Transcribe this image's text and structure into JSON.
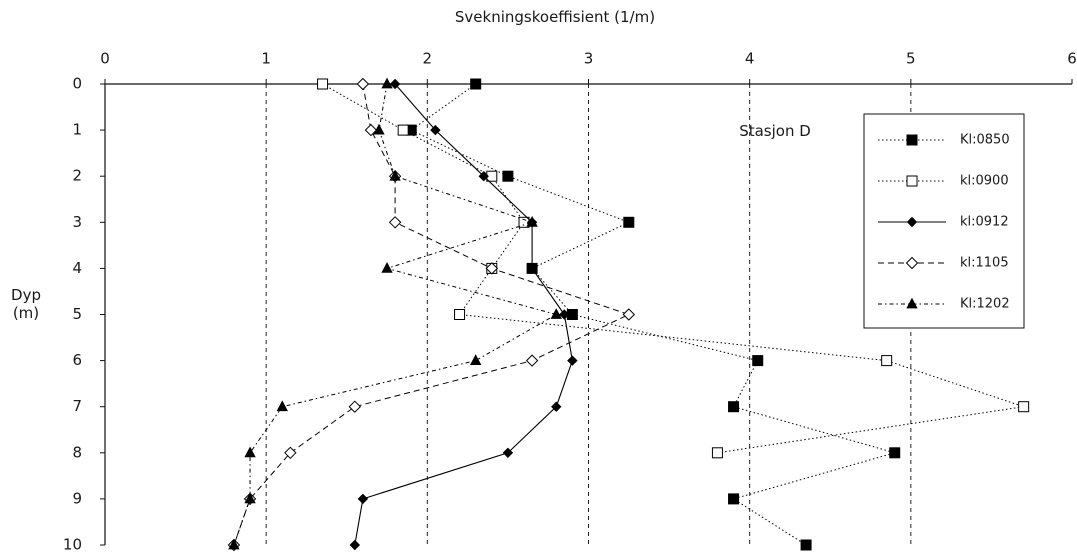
{
  "chart_data": {
    "type": "scatter",
    "title": "",
    "xlabel": "Svekningskoeffisient (1/m)",
    "ylabel": "Dyp\n(m)",
    "xlim": [
      0,
      6
    ],
    "ylim": [
      0,
      10
    ],
    "x_ticks": [
      "0",
      "1",
      "2",
      "3",
      "4",
      "5",
      "6"
    ],
    "y_ticks": [
      "0",
      "1",
      "2",
      "3",
      "4",
      "5",
      "6",
      "7",
      "8",
      "9",
      "10"
    ],
    "y_reversed": true,
    "x_axis_position": "top",
    "grid": "vertical dashed lines at x = 1, 2, 3, 4, 5",
    "legend_position": "right",
    "annotation": "Stasjon D",
    "series": [
      {
        "name": "Kl:0850",
        "marker": "square-filled",
        "line": "dotted",
        "color": "#000000",
        "points": [
          [
            2.3,
            0
          ],
          [
            1.9,
            1
          ],
          [
            2.5,
            2
          ],
          [
            3.25,
            3
          ],
          [
            2.65,
            4
          ],
          [
            2.9,
            5
          ],
          [
            4.05,
            6
          ],
          [
            3.9,
            7
          ],
          [
            4.9,
            8
          ],
          [
            3.9,
            9
          ],
          [
            4.35,
            10
          ]
        ]
      },
      {
        "name": "kl:0900",
        "marker": "square-open",
        "line": "dotted",
        "color": "#000000",
        "points": [
          [
            1.35,
            0
          ],
          [
            1.85,
            1
          ],
          [
            2.4,
            2
          ],
          [
            2.6,
            3
          ],
          [
            2.4,
            4
          ],
          [
            2.2,
            5
          ],
          [
            4.85,
            6
          ],
          [
            5.7,
            7
          ],
          [
            3.8,
            8
          ]
        ]
      },
      {
        "name": "kl:0912",
        "marker": "diamond-filled",
        "line": "solid",
        "color": "#000000",
        "points": [
          [
            1.8,
            0
          ],
          [
            2.05,
            1
          ],
          [
            2.35,
            2
          ],
          [
            2.65,
            3
          ],
          [
            2.65,
            4
          ],
          [
            2.85,
            5
          ],
          [
            2.9,
            6
          ],
          [
            2.8,
            7
          ],
          [
            2.5,
            8
          ],
          [
            1.6,
            9
          ],
          [
            1.55,
            10
          ]
        ]
      },
      {
        "name": "kl:1105",
        "marker": "diamond-open",
        "line": "dashed",
        "color": "#000000",
        "points": [
          [
            1.6,
            0
          ],
          [
            1.65,
            1
          ],
          [
            1.8,
            2
          ],
          [
            1.8,
            3
          ],
          [
            2.4,
            4
          ],
          [
            3.25,
            5
          ],
          [
            2.65,
            6
          ],
          [
            1.55,
            7
          ],
          [
            1.15,
            8
          ],
          [
            0.9,
            9
          ],
          [
            0.8,
            10
          ]
        ]
      },
      {
        "name": "Kl:1202",
        "marker": "triangle-filled",
        "line": "dash-dot",
        "color": "#000000",
        "points": [
          [
            1.75,
            0
          ],
          [
            1.7,
            1
          ],
          [
            1.8,
            2
          ],
          [
            2.65,
            3
          ],
          [
            1.75,
            4
          ],
          [
            2.8,
            5
          ],
          [
            2.3,
            6
          ],
          [
            1.1,
            7
          ],
          [
            0.9,
            8
          ],
          [
            0.9,
            9
          ],
          [
            0.8,
            10
          ]
        ]
      }
    ]
  }
}
